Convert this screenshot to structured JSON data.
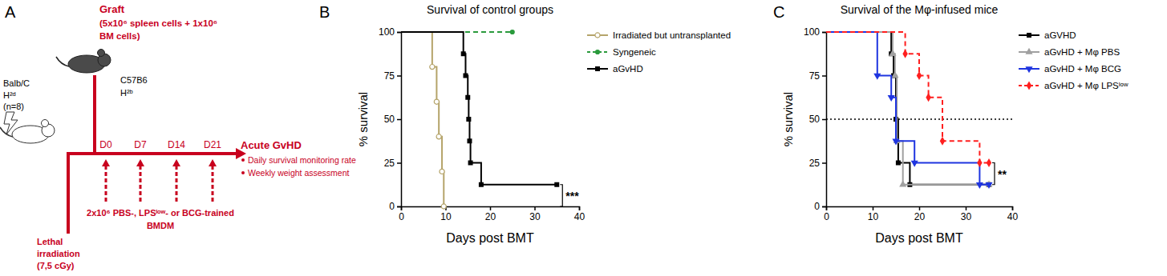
{
  "diagram": {
    "panel_label": "A",
    "graft": [
      "Graft",
      "(5x10⁶ spleen cells + 1x10⁶",
      "BM cells)"
    ],
    "donor": [
      "C57B6",
      "H²ᵇ"
    ],
    "recipient": [
      "Balb/C",
      "H²ᵈ",
      "(n=8)"
    ],
    "timepoints": [
      "D0",
      "D7",
      "D14",
      "D21"
    ],
    "readout": [
      "Acute GvHD",
      "Daily survival monitoring rate",
      "Weekly weight assessment"
    ],
    "infusion": [
      "2x10⁶ PBS-, LPSˡᵒʷ- or BCG-trained",
      "BMDM"
    ],
    "conditioning": [
      "Lethal",
      "irradiation",
      "(7,5 cGy)"
    ]
  },
  "chart_data": [
    {
      "type": "step",
      "panel_label": "B",
      "title": "Survival of control groups",
      "x_label": "Days post BMT",
      "y_label": "% survival",
      "xlim": [
        0,
        40
      ],
      "xticks": [
        0,
        10,
        20,
        30,
        40
      ],
      "ylim": [
        0,
        100
      ],
      "yticks": [
        0,
        25,
        50,
        75,
        100
      ],
      "legend": "right",
      "series": [
        {
          "name": "Irradiated but untransplanted",
          "color": "#b5a46a",
          "marker": "circle-open",
          "line_style": "solid",
          "x": [
            0,
            7,
            8,
            8.5,
            9.2,
            9.6
          ],
          "values": [
            100,
            80,
            60,
            40,
            20,
            0
          ]
        },
        {
          "name": "Syngeneic",
          "color": "#2a9a3c",
          "marker": "circle",
          "line_style": "dashed",
          "x": [
            0,
            25
          ],
          "values": [
            100,
            100
          ]
        },
        {
          "name": "aGvHD",
          "color": "#000000",
          "marker": "square",
          "line_style": "solid",
          "x": [
            0,
            14,
            14.5,
            15,
            15.2,
            15.4,
            15.6,
            18,
            35
          ],
          "values": [
            100,
            87.5,
            75,
            62.5,
            50,
            37.5,
            25,
            12.5,
            12.5
          ]
        }
      ],
      "significance": {
        "label": "***",
        "between": [
          12.5,
          0
        ]
      }
    },
    {
      "type": "step",
      "panel_label": "C",
      "title": "Survival of the Mφ-infused mice",
      "x_label": "Days post BMT",
      "y_label": "% survival",
      "xlim": [
        0,
        40
      ],
      "xticks": [
        0,
        10,
        20,
        30,
        40
      ],
      "ylim": [
        0,
        100
      ],
      "yticks": [
        0,
        25,
        50,
        75,
        100
      ],
      "legend": "right",
      "hline": 50,
      "series": [
        {
          "name": "aGVHD",
          "color": "#000000",
          "marker": "square",
          "line_style": "solid",
          "x": [
            0,
            14,
            14.5,
            15,
            15.5,
            18,
            35
          ],
          "values": [
            100,
            87.5,
            75,
            50,
            25,
            12.5,
            12.5
          ]
        },
        {
          "name": "aGvHD + Mφ PBS",
          "color": "#a0a0a0",
          "marker": "triangle",
          "line_style": "solid",
          "x": [
            0,
            14.3,
            14.8,
            15.2,
            16.5,
            35
          ],
          "values": [
            100,
            87.5,
            75,
            37.5,
            12.5,
            12.5
          ]
        },
        {
          "name": "aGvHD + Mφ BCG",
          "color": "#1f35e0",
          "marker": "triangle-down",
          "line_style": "solid",
          "x": [
            0,
            11,
            14,
            15,
            19,
            33,
            35
          ],
          "values": [
            100,
            75,
            62.5,
            37.5,
            25,
            12.5,
            12.5
          ]
        },
        {
          "name": "aGvHD + Mφ LPSˡᵒʷ",
          "color": "#ff1f1f",
          "marker": "diamond",
          "line_style": "dashed",
          "x": [
            0,
            17,
            20,
            22,
            25,
            33,
            35
          ],
          "values": [
            100,
            87.5,
            75,
            62.5,
            37.5,
            25,
            25
          ]
        }
      ],
      "significance": {
        "label": "**",
        "between": [
          25,
          12.5
        ]
      }
    }
  ]
}
